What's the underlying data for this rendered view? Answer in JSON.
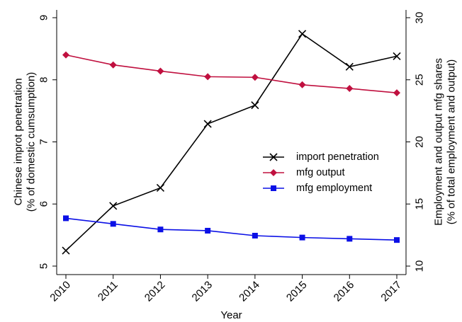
{
  "chart_data": {
    "type": "line",
    "title": "",
    "xlabel": "Year",
    "ylabel_left": [
      "Chinese improt penetration",
      "(% of domestic cumsumption)"
    ],
    "ylabel_right": [
      "Employment and output mfg shares",
      "(% of total employment and output)"
    ],
    "x": [
      2010,
      2011,
      2012,
      2013,
      2014,
      2015,
      2016,
      2017
    ],
    "x_tick_labels": [
      "2010",
      "2011",
      "2012",
      "2013",
      "2014",
      "2015",
      "2016",
      "2017"
    ],
    "y_left_lim": [
      5,
      9
    ],
    "y_left_ticks": [
      5,
      6,
      7,
      8,
      9
    ],
    "y_left_tick_labels": [
      "5",
      "6",
      "7",
      "8",
      "9"
    ],
    "y_right_lim": [
      10,
      30
    ],
    "y_right_ticks": [
      10,
      15,
      20,
      25,
      30
    ],
    "y_right_tick_labels": [
      "10",
      "15",
      "20",
      "25",
      "30"
    ],
    "grid": false,
    "legend_position": "center-right",
    "series": [
      {
        "name": "import penetration",
        "axis": "left",
        "color": "#000000",
        "marker": "x",
        "values": [
          5.25,
          5.97,
          6.26,
          7.29,
          7.59,
          8.74,
          8.21,
          8.38
        ]
      },
      {
        "name": "mfg output",
        "axis": "right",
        "color": "#c0103f",
        "marker": "diamond",
        "values": [
          27.0,
          26.2,
          25.7,
          25.25,
          25.2,
          24.6,
          24.3,
          23.95
        ]
      },
      {
        "name": "mfg employment",
        "axis": "right",
        "color": "#0b10e6",
        "marker": "square",
        "values": [
          13.85,
          13.4,
          12.95,
          12.85,
          12.45,
          12.3,
          12.2,
          12.1
        ]
      }
    ]
  }
}
